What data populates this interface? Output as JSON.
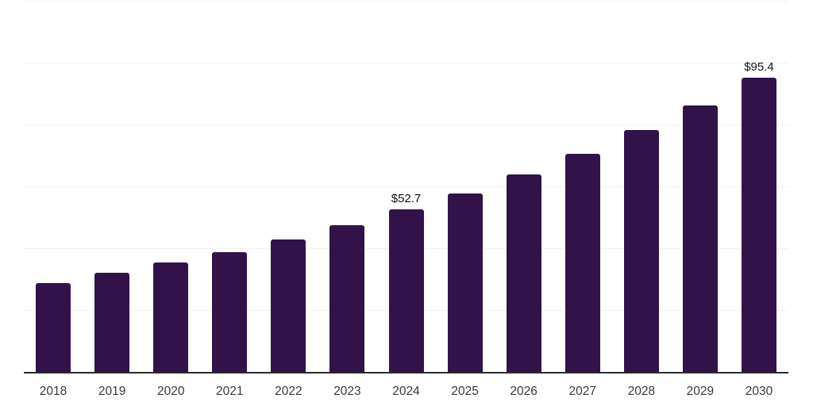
{
  "chart_data": {
    "type": "bar",
    "title": "",
    "xlabel": "",
    "ylabel": "",
    "categories": [
      "2018",
      "2019",
      "2020",
      "2021",
      "2022",
      "2023",
      "2024",
      "2025",
      "2026",
      "2027",
      "2028",
      "2029",
      "2030"
    ],
    "values": [
      28.9,
      32.2,
      35.6,
      39.1,
      43.1,
      47.7,
      52.7,
      57.9,
      64.2,
      70.9,
      78.5,
      86.4,
      95.4
    ],
    "value_prefix": "$",
    "labeled_points": [
      {
        "category": "2024",
        "index": 6,
        "label": "$52.7"
      },
      {
        "category": "2030",
        "index": 12,
        "label": "$95.4"
      }
    ],
    "ylim": [
      0,
      120
    ],
    "grid": true,
    "gridline_interval": 20,
    "legend": "none",
    "y_axis_tick_labels_visible": false
  },
  "colors": {
    "bar": "#311349",
    "gridline": "#f2f2f2",
    "axis_line": "#2b2b2b",
    "tick_label": "#3a3a3a",
    "data_label": "#111111",
    "background": "#ffffff"
  }
}
